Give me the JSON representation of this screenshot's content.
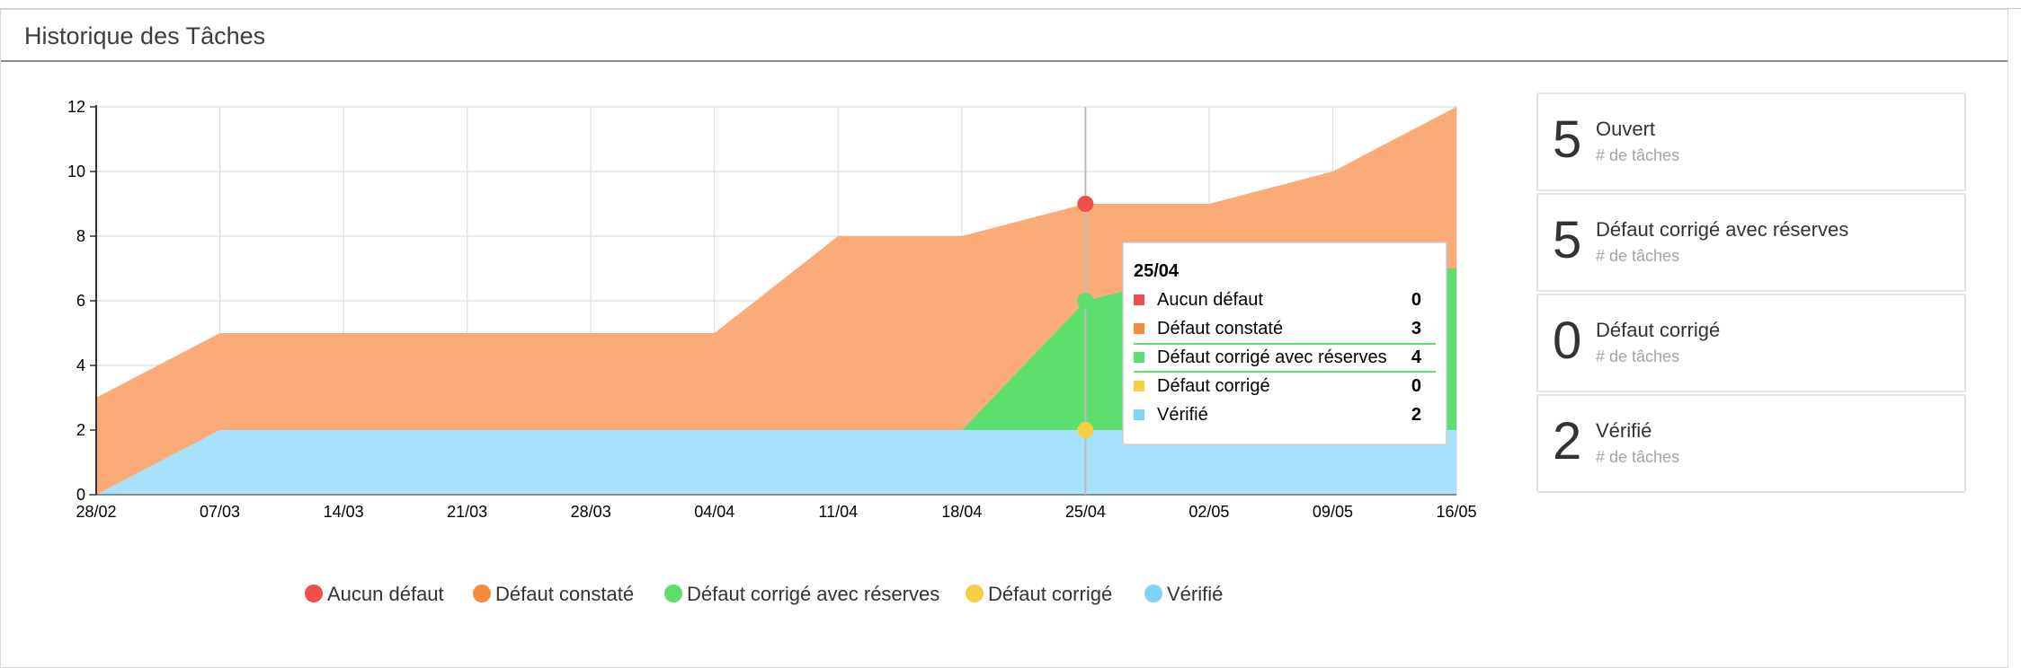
{
  "panel": {
    "title": "Historique des Tâches"
  },
  "colors": {
    "aucun_defaut": "#f04e4e",
    "defaut_constate": "#fbab78",
    "defaut_constate_legend": "#f58a3a",
    "defaut_corrige_reserves": "#5fde70",
    "defaut_corrige": "#f6cf45",
    "verifie": "#a8e1fb",
    "verifie_legend": "#7fd3f7"
  },
  "chart_data": {
    "type": "area",
    "stacked": true,
    "x": [
      "28/02",
      "07/03",
      "14/03",
      "21/03",
      "28/03",
      "04/04",
      "11/04",
      "18/04",
      "25/04",
      "02/05",
      "09/05",
      "16/05"
    ],
    "ylim": [
      0,
      12
    ],
    "yticks": [
      "0",
      "2",
      "4",
      "6",
      "8",
      "10",
      "12"
    ],
    "grid": true,
    "legend_position": "bottom",
    "series": [
      {
        "key": "verifie",
        "name": "Vérifié",
        "values": [
          0,
          2,
          2,
          2,
          2,
          2,
          2,
          2,
          2,
          2,
          2,
          2
        ]
      },
      {
        "key": "defaut_corrige",
        "name": "Défaut corrigé",
        "values": [
          0,
          0,
          0,
          0,
          0,
          0,
          0,
          0,
          0,
          0,
          0,
          0
        ]
      },
      {
        "key": "defaut_corrige_reserves",
        "name": "Défaut corrigé avec réserves",
        "values": [
          0,
          0,
          0,
          0,
          0,
          0,
          0,
          0,
          4,
          5,
          5,
          5
        ]
      },
      {
        "key": "defaut_constate",
        "name": "Défaut constaté",
        "values": [
          3,
          3,
          3,
          3,
          3,
          3,
          6,
          6,
          3,
          2,
          3,
          5
        ]
      },
      {
        "key": "aucun_defaut",
        "name": "Aucun défaut",
        "values": [
          0,
          0,
          0,
          0,
          0,
          0,
          0,
          0,
          0,
          0,
          0,
          0
        ]
      }
    ],
    "legend_order": [
      "aucun_defaut",
      "defaut_constate",
      "defaut_corrige_reserves",
      "defaut_corrige",
      "verifie"
    ],
    "hover_index": 8,
    "tooltip": {
      "title": "25/04",
      "rows": [
        {
          "key": "aucun_defaut",
          "label": "Aucun défaut",
          "value": "0"
        },
        {
          "key": "defaut_constate",
          "label": "Défaut constaté",
          "value": "3"
        },
        {
          "key": "defaut_corrige_reserves",
          "label": "Défaut corrigé avec réserves",
          "value": "4"
        },
        {
          "key": "defaut_corrige",
          "label": "Défaut corrigé",
          "value": "0"
        },
        {
          "key": "verifie",
          "label": "Vérifié",
          "value": "2"
        }
      ],
      "highlight_key": "defaut_corrige_reserves"
    }
  },
  "stats": [
    {
      "count": "5",
      "label": "Ouvert",
      "sub": "# de tâches"
    },
    {
      "count": "5",
      "label": "Défaut corrigé avec réserves",
      "sub": "# de tâches"
    },
    {
      "count": "0",
      "label": "Défaut corrigé",
      "sub": "# de tâches"
    },
    {
      "count": "2",
      "label": "Vérifié",
      "sub": "# de tâches"
    }
  ]
}
